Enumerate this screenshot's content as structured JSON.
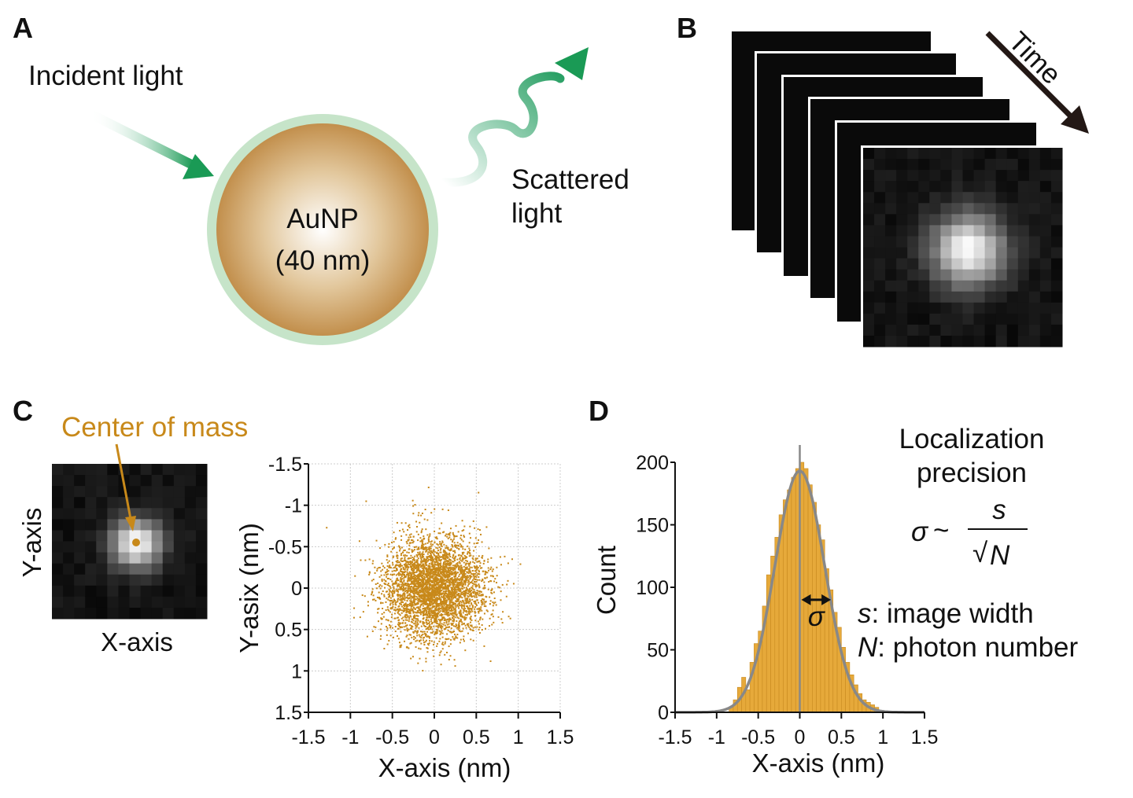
{
  "colors": {
    "gold": "#c8891a",
    "bar": "#e6a93a",
    "fit": "#888888",
    "ring": "#c6e4c9",
    "particle": "#c6985a",
    "arrow_green": "#1a9a55"
  },
  "panel_a": {
    "label": "A",
    "incident": "Incident light",
    "particle_name": "AuNP",
    "particle_size": "(40 nm)",
    "scattered_1": "Scattered",
    "scattered_2": "light"
  },
  "panel_b": {
    "label": "B",
    "time": "Time",
    "frames": 6
  },
  "panel_c": {
    "label": "C",
    "center_of_mass": "Center of mass",
    "y_axis": "Y-axis",
    "x_axis": "X-axis"
  },
  "panel_d": {
    "label": "D",
    "title_1": "Localization",
    "title_2": "precision",
    "sigma": "σ",
    "tilde": "~",
    "s": "s",
    "N": "N",
    "sqrt": "√",
    "s_desc": ": image width",
    "n_desc": ": photon number"
  },
  "chart_data": [
    {
      "type": "scatter",
      "xlabel": "X-axis (nm)",
      "ylabel": "Y-asix (nm)",
      "xlim": [
        -1.5,
        1.5
      ],
      "ylim": [
        -1.5,
        1.5
      ],
      "y_inverted": true,
      "grid": true,
      "xticks": [
        "-1.5",
        "-1",
        "-0.5",
        "0",
        "0.5",
        "1",
        "1.5"
      ],
      "yticks": [
        "-1.5",
        "-1",
        "-0.5",
        "0",
        "0.5",
        "1",
        "1.5"
      ],
      "distribution": {
        "mean_x": 0,
        "mean_y": 0,
        "sd": 0.3,
        "n": 4000
      }
    },
    {
      "type": "bar",
      "xlabel": "X-axis (nm)",
      "ylabel": "Count",
      "xlim": [
        -1.5,
        1.5
      ],
      "ylim": [
        0,
        200
      ],
      "xticks": [
        "-1.5",
        "-1",
        "-0.5",
        "0",
        "0.5",
        "1",
        "1.5"
      ],
      "yticks": [
        "0",
        "50",
        "100",
        "150",
        "200"
      ],
      "bin_width": 0.05,
      "bin_centers": [
        -0.825,
        -0.775,
        -0.725,
        -0.675,
        -0.625,
        -0.575,
        -0.525,
        -0.475,
        -0.425,
        -0.375,
        -0.325,
        -0.275,
        -0.225,
        -0.175,
        -0.125,
        -0.075,
        -0.025,
        0.025,
        0.075,
        0.125,
        0.175,
        0.225,
        0.275,
        0.325,
        0.375,
        0.425,
        0.475,
        0.525,
        0.575,
        0.625,
        0.675,
        0.725,
        0.775,
        0.825,
        0.875,
        0.925
      ],
      "values": [
        4,
        10,
        20,
        28,
        18,
        40,
        55,
        65,
        85,
        110,
        125,
        140,
        158,
        170,
        178,
        188,
        195,
        200,
        195,
        182,
        168,
        150,
        138,
        115,
        98,
        80,
        68,
        52,
        40,
        30,
        22,
        15,
        10,
        8,
        6,
        4
      ],
      "fit": {
        "type": "gaussian",
        "peak": 193,
        "mean": 0,
        "sd": 0.3
      }
    }
  ]
}
